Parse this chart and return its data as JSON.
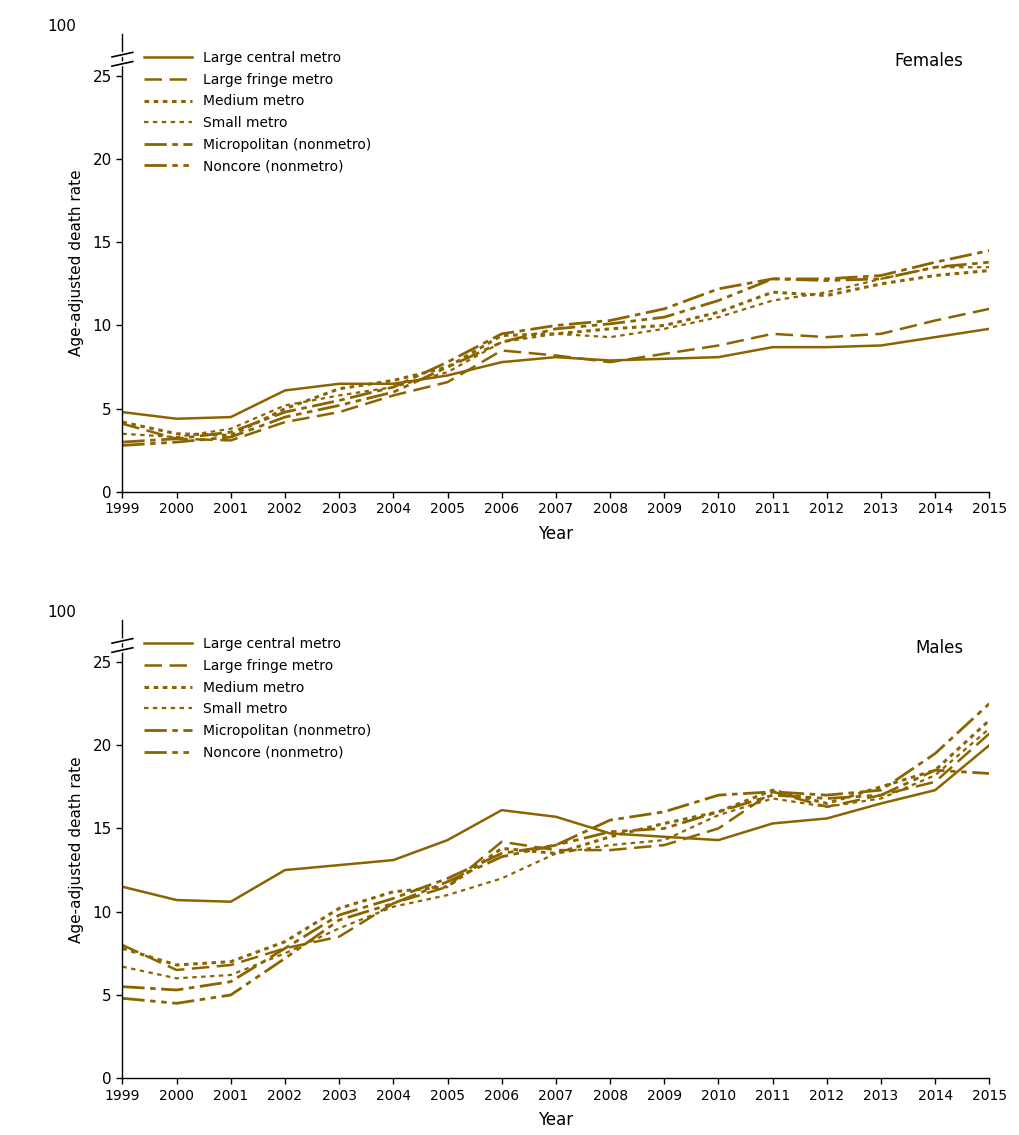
{
  "years": [
    1999,
    2000,
    2001,
    2002,
    2003,
    2004,
    2005,
    2006,
    2007,
    2008,
    2009,
    2010,
    2011,
    2012,
    2013,
    2014,
    2015
  ],
  "color": "#8B6400",
  "females": {
    "large_central": [
      4.8,
      4.4,
      4.5,
      6.1,
      6.5,
      6.5,
      7.0,
      7.8,
      8.1,
      7.9,
      8.0,
      8.1,
      8.7,
      8.7,
      8.8,
      9.3,
      9.8
    ],
    "large_fringe": [
      4.1,
      3.2,
      3.1,
      4.2,
      4.8,
      5.8,
      6.6,
      8.5,
      8.2,
      7.8,
      8.3,
      8.8,
      9.5,
      9.3,
      9.5,
      10.3,
      11.0
    ],
    "medium": [
      4.2,
      3.5,
      3.4,
      5.0,
      6.2,
      6.7,
      7.5,
      9.4,
      9.5,
      9.8,
      10.0,
      10.8,
      12.0,
      11.8,
      12.5,
      13.0,
      13.3
    ],
    "small": [
      3.5,
      3.3,
      3.8,
      5.2,
      5.8,
      6.3,
      7.2,
      9.0,
      9.5,
      9.3,
      9.8,
      10.5,
      11.5,
      12.0,
      12.8,
      13.5,
      13.5
    ],
    "micropolitan": [
      3.0,
      3.2,
      3.6,
      4.8,
      5.5,
      6.3,
      7.8,
      9.5,
      10.0,
      10.3,
      11.0,
      12.2,
      12.8,
      12.8,
      13.0,
      13.8,
      14.5
    ],
    "noncore": [
      2.8,
      3.0,
      3.3,
      4.5,
      5.2,
      6.0,
      7.5,
      9.0,
      9.8,
      10.1,
      10.5,
      11.5,
      12.8,
      12.7,
      12.8,
      13.5,
      13.8
    ]
  },
  "males": {
    "large_central": [
      11.5,
      10.7,
      10.6,
      12.5,
      12.8,
      13.1,
      14.3,
      16.1,
      15.7,
      14.7,
      14.5,
      14.3,
      15.3,
      15.6,
      16.5,
      17.3,
      20.0
    ],
    "large_fringe": [
      8.0,
      6.5,
      6.8,
      7.8,
      8.5,
      10.5,
      11.5,
      14.2,
      13.7,
      13.7,
      14.0,
      15.0,
      17.2,
      16.3,
      17.0,
      17.8,
      20.7
    ],
    "medium": [
      7.8,
      6.8,
      7.0,
      8.2,
      10.2,
      11.2,
      11.5,
      13.8,
      13.5,
      14.5,
      15.3,
      16.0,
      17.3,
      16.5,
      17.5,
      18.5,
      21.5
    ],
    "small": [
      6.7,
      6.0,
      6.2,
      7.5,
      9.0,
      10.3,
      11.0,
      12.0,
      13.5,
      14.0,
      14.3,
      15.8,
      16.8,
      16.3,
      16.8,
      18.2,
      21.0
    ],
    "micropolitan": [
      5.5,
      5.3,
      5.8,
      7.8,
      9.8,
      10.8,
      12.0,
      13.5,
      14.0,
      15.5,
      16.0,
      17.0,
      17.2,
      17.0,
      17.3,
      19.5,
      22.5
    ],
    "noncore": [
      4.8,
      4.5,
      5.0,
      7.2,
      9.5,
      10.5,
      11.8,
      13.3,
      14.0,
      14.8,
      15.0,
      16.0,
      17.0,
      16.8,
      17.0,
      18.5,
      18.3
    ]
  },
  "legend_labels": [
    "Large central metro",
    "Large fringe metro",
    "Medium metro",
    "Small metro",
    "Micropolitan (nonmetro)",
    "Noncore (nonmetro)"
  ],
  "ylabel": "Age-adjusted death rate",
  "xlabel": "Year",
  "ylim_display": 27.5,
  "ylim_data": 25,
  "yticks": [
    0,
    5,
    10,
    15,
    20,
    25
  ],
  "panel_labels": [
    "Females",
    "Males"
  ],
  "background_color": "#ffffff"
}
